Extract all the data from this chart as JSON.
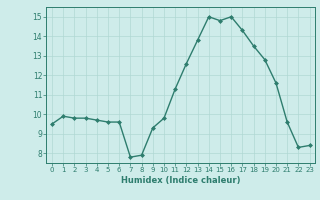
{
  "x": [
    0,
    1,
    2,
    3,
    4,
    5,
    6,
    7,
    8,
    9,
    10,
    11,
    12,
    13,
    14,
    15,
    16,
    17,
    18,
    19,
    20,
    21,
    22,
    23
  ],
  "y": [
    9.5,
    9.9,
    9.8,
    9.8,
    9.7,
    9.6,
    9.6,
    7.8,
    7.9,
    9.3,
    9.8,
    11.3,
    12.6,
    13.8,
    15.0,
    14.8,
    15.0,
    14.3,
    13.5,
    12.8,
    11.6,
    9.6,
    8.3,
    8.4
  ],
  "line_color": "#2e7d6e",
  "marker": "D",
  "marker_size": 2.0,
  "linewidth": 1.0,
  "bg_color": "#ceecea",
  "grid_color": "#b0d8d4",
  "tick_color": "#2e7d6e",
  "label_color": "#2e7d6e",
  "xlabel": "Humidex (Indice chaleur)",
  "ylim": [
    7.5,
    15.5
  ],
  "yticks": [
    8,
    9,
    10,
    11,
    12,
    13,
    14,
    15
  ],
  "xticks": [
    0,
    1,
    2,
    3,
    4,
    5,
    6,
    7,
    8,
    9,
    10,
    11,
    12,
    13,
    14,
    15,
    16,
    17,
    18,
    19,
    20,
    21,
    22,
    23
  ]
}
